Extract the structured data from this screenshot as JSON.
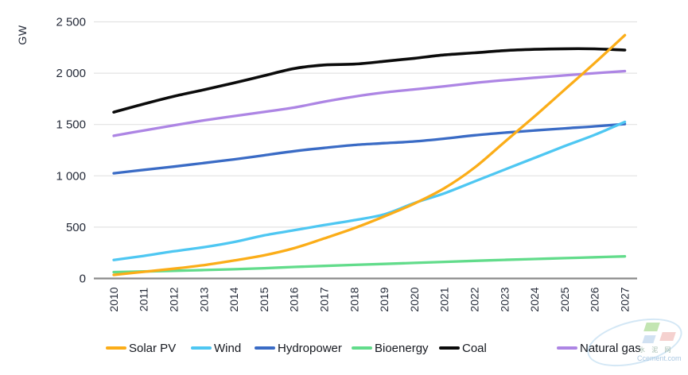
{
  "chart_data": {
    "type": "line",
    "title": "",
    "ylabel": "GW",
    "xlabel": "",
    "x_labels": [
      "2010",
      "2011",
      "2012",
      "2013",
      "2014",
      "2015",
      "2016",
      "2017",
      "2018",
      "2019",
      "2020",
      "2021",
      "2022",
      "2023",
      "2024",
      "2025",
      "2026",
      "2027"
    ],
    "ylim": [
      0,
      2500
    ],
    "yticks": [
      0,
      500,
      1000,
      1500,
      2000,
      2500
    ],
    "ytick_labels": [
      "0",
      "500",
      "1 000",
      "1 500",
      "2 000",
      "2 500"
    ],
    "grid": "horizontal-light",
    "legend_position": "bottom",
    "series": [
      {
        "name": "Solar PV",
        "color": "#FBAD18",
        "values": [
          35,
          65,
          95,
          130,
          175,
          225,
          295,
          390,
          490,
          605,
          730,
          880,
          1080,
          1330,
          1580,
          1840,
          2100,
          2370
        ]
      },
      {
        "name": "Wind",
        "color": "#4EC7F2",
        "values": [
          180,
          220,
          265,
          305,
          355,
          420,
          470,
          520,
          568,
          625,
          735,
          830,
          945,
          1060,
          1175,
          1290,
          1400,
          1525
        ]
      },
      {
        "name": "Hydropower",
        "color": "#3A6BC5",
        "values": [
          1025,
          1058,
          1090,
          1125,
          1160,
          1200,
          1240,
          1272,
          1300,
          1318,
          1335,
          1362,
          1395,
          1420,
          1442,
          1462,
          1482,
          1505
        ]
      },
      {
        "name": "Bioenergy",
        "color": "#62DC8B",
        "values": [
          62,
          68,
          75,
          82,
          90,
          100,
          112,
          122,
          132,
          142,
          152,
          162,
          172,
          181,
          190,
          198,
          207,
          215
        ]
      },
      {
        "name": "Coal",
        "color": "#0B0B0B",
        "values": [
          1620,
          1700,
          1775,
          1838,
          1905,
          1975,
          2045,
          2080,
          2088,
          2115,
          2145,
          2178,
          2198,
          2220,
          2232,
          2238,
          2237,
          2225
        ]
      },
      {
        "name": "Natural gas",
        "color": "#AD85E4",
        "values": [
          1390,
          1442,
          1492,
          1540,
          1582,
          1622,
          1665,
          1722,
          1772,
          1812,
          1842,
          1872,
          1905,
          1932,
          1956,
          1978,
          2000,
          2020
        ]
      }
    ]
  },
  "watermark": {
    "line1": "水 泥 网",
    "line2": "Ccement.com"
  }
}
